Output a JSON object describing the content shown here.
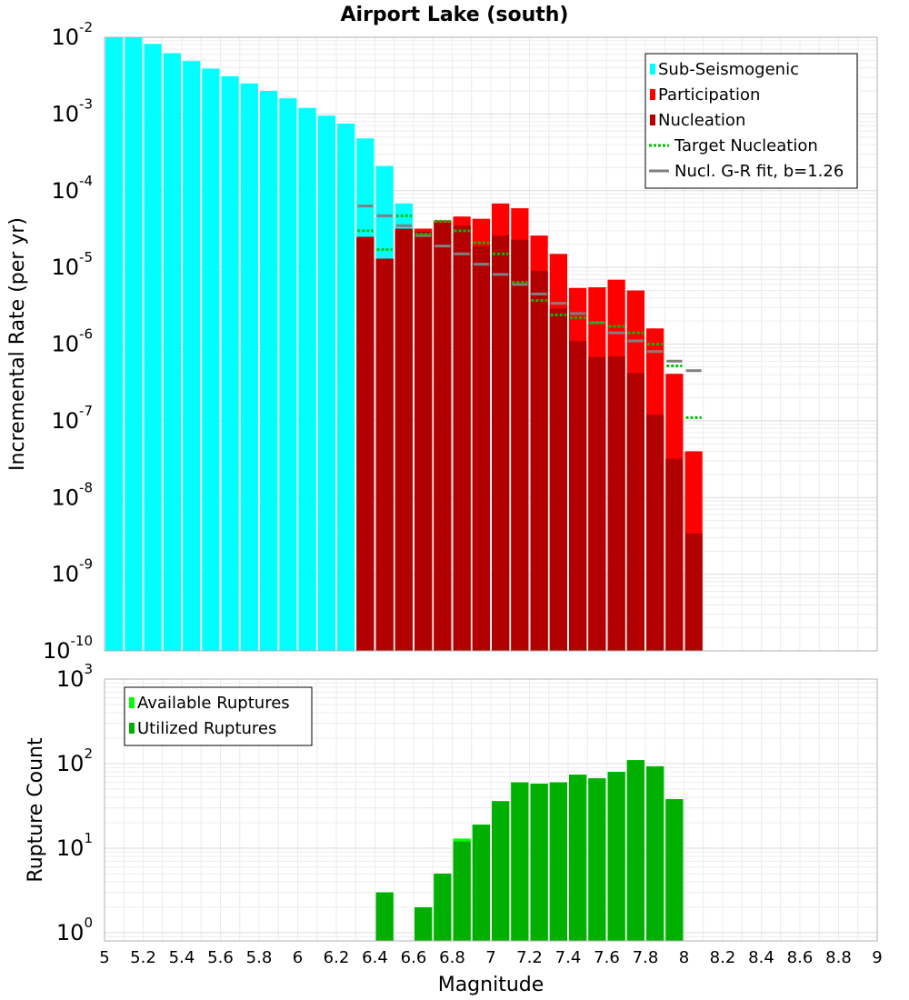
{
  "chart_data": [
    {
      "type": "bar",
      "title": "Airport Lake (south)",
      "xlabel": "",
      "ylabel": "Incremental Rate (per yr)",
      "yscale": "log",
      "xlim": [
        5,
        9
      ],
      "ylim": [
        1e-10,
        0.01
      ],
      "bin_width": 0.1,
      "ytick_exponents": [
        -10,
        -9,
        -8,
        -7,
        -6,
        -5,
        -4,
        -3,
        -2
      ],
      "grid": true,
      "legend_position": "top-right",
      "legend": [
        {
          "label": "Sub-Seismogenic",
          "kind": "box",
          "color": "#00ffff"
        },
        {
          "label": "Participation",
          "kind": "box",
          "color": "#ff0000"
        },
        {
          "label": "Nucleation",
          "kind": "box",
          "color": "#b20000"
        },
        {
          "label": "Target Nucleation",
          "kind": "dotted",
          "color": "#00c000"
        },
        {
          "label": "Nucl. G-R fit, b=1.26",
          "kind": "line",
          "color": "#808080"
        }
      ],
      "series": [
        {
          "name": "Sub-Seismogenic",
          "color": "#00ffff",
          "x": [
            5.05,
            5.15,
            5.25,
            5.35,
            5.45,
            5.55,
            5.65,
            5.75,
            5.85,
            5.95,
            6.05,
            6.15,
            6.25,
            6.35,
            6.45,
            6.55
          ],
          "values": [
            0.01,
            0.01,
            0.0082,
            0.0062,
            0.0049,
            0.0039,
            0.0031,
            0.0025,
            0.002,
            0.0016,
            0.0012,
            0.00095,
            0.00075,
            0.00048,
            0.00021,
            6.8e-05
          ]
        },
        {
          "name": "Participation",
          "color": "#ff0000",
          "x": [
            6.35,
            6.45,
            6.55,
            6.65,
            6.75,
            6.85,
            6.95,
            7.05,
            7.15,
            7.25,
            7.35,
            7.45,
            7.55,
            7.65,
            7.75,
            7.85,
            7.95,
            8.05
          ],
          "values": [
            2.5e-05,
            1.3e-05,
            3.2e-05,
            3.2e-05,
            4.1e-05,
            4.6e-05,
            4.3e-05,
            6.8e-05,
            5.9e-05,
            2.6e-05,
            1.5e-05,
            5.4e-06,
            5.5e-06,
            6.9e-06,
            5e-06,
            1.6e-06,
            4.1e-07,
            4e-08
          ]
        },
        {
          "name": "Nucleation",
          "color": "#b20000",
          "x": [
            6.35,
            6.45,
            6.55,
            6.65,
            6.75,
            6.85,
            6.95,
            7.05,
            7.15,
            7.25,
            7.35,
            7.45,
            7.55,
            7.65,
            7.75,
            7.85,
            7.95,
            8.05
          ],
          "values": [
            2.5e-05,
            1.3e-05,
            3.2e-05,
            2.9e-05,
            3.8e-05,
            3.5e-05,
            1.9e-05,
            2.6e-05,
            2.3e-05,
            9e-06,
            2.9e-06,
            1.1e-06,
            6.8e-07,
            6.9e-07,
            4.2e-07,
            1.2e-07,
            3.2e-08,
            3.4e-09
          ]
        },
        {
          "name": "Target Nucleation",
          "color": "#00c000",
          "x": [
            6.35,
            6.45,
            6.55,
            6.65,
            6.75,
            6.85,
            6.95,
            7.05,
            7.15,
            7.25,
            7.35,
            7.45,
            7.55,
            7.65,
            7.75,
            7.85,
            7.95,
            8.05
          ],
          "values": [
            3e-05,
            1.7e-05,
            4.7e-05,
            2.7e-05,
            4e-05,
            3e-05,
            2.1e-05,
            1.5e-05,
            6.4e-06,
            3.7e-06,
            2.4e-06,
            2.2e-06,
            1.9e-06,
            1.7e-06,
            1.4e-06,
            1e-06,
            5.2e-07,
            1.1e-07
          ]
        },
        {
          "name": "Nucl. G-R fit, b=1.26",
          "color": "#808080",
          "x": [
            6.35,
            6.45,
            6.55,
            6.65,
            6.75,
            6.85,
            6.95,
            7.05,
            7.15,
            7.25,
            7.35,
            7.45,
            7.55,
            7.65,
            7.75,
            7.85,
            7.95,
            8.05
          ],
          "values": [
            6.3e-05,
            4.7e-05,
            3.5e-05,
            2.6e-05,
            1.9e-05,
            1.5e-05,
            1.1e-05,
            8.1e-06,
            6e-06,
            4.5e-06,
            3.4e-06,
            2.5e-06,
            1.9e-06,
            1.4e-06,
            1.1e-06,
            8e-07,
            6e-07,
            4.5e-07
          ]
        }
      ]
    },
    {
      "type": "bar",
      "title": "",
      "xlabel": "Magnitude",
      "ylabel": "Rupture Count",
      "yscale": "log",
      "xlim": [
        5,
        9
      ],
      "ylim": [
        0.8,
        1000
      ],
      "bin_width": 0.1,
      "ytick_exponents": [
        0,
        1,
        2,
        3
      ],
      "xticks": [
        "5",
        "5.2",
        "5.4",
        "5.6",
        "5.8",
        "6",
        "6.2",
        "6.4",
        "6.6",
        "6.8",
        "7",
        "7.2",
        "7.4",
        "7.6",
        "7.8",
        "8",
        "8.2",
        "8.4",
        "8.6",
        "8.8",
        "9"
      ],
      "grid": true,
      "legend_position": "top-left",
      "legend": [
        {
          "label": "Available Ruptures",
          "kind": "box",
          "color": "#00ff00"
        },
        {
          "label": "Utilized Ruptures",
          "kind": "box",
          "color": "#00b000"
        }
      ],
      "series": [
        {
          "name": "Available Ruptures",
          "color": "#00ff00",
          "x": [
            6.45,
            6.65,
            6.75,
            6.85,
            6.95,
            7.05,
            7.15,
            7.25,
            7.35,
            7.45,
            7.55,
            7.65,
            7.75,
            7.85,
            7.95
          ],
          "values": [
            3,
            2,
            5,
            13,
            19,
            36,
            60,
            58,
            60,
            74,
            67,
            80,
            110,
            93,
            38
          ]
        },
        {
          "name": "Utilized Ruptures",
          "color": "#00b000",
          "x": [
            6.45,
            6.65,
            6.75,
            6.85,
            6.95,
            7.05,
            7.15,
            7.25,
            7.35,
            7.45,
            7.55,
            7.65,
            7.75,
            7.85,
            7.95
          ],
          "values": [
            3,
            2,
            5,
            12,
            19,
            36,
            60,
            58,
            60,
            74,
            67,
            80,
            110,
            93,
            38
          ]
        }
      ]
    }
  ]
}
